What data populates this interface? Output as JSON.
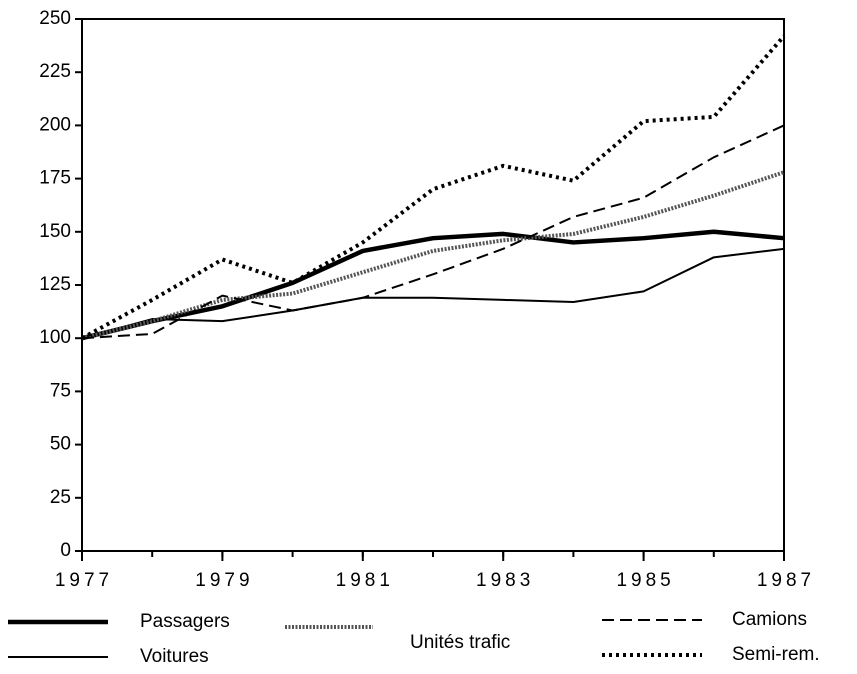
{
  "chart_data": {
    "type": "line",
    "x": [
      1977,
      1978,
      1979,
      1980,
      1981,
      1982,
      1983,
      1984,
      1985,
      1986,
      1987
    ],
    "xlim": [
      1977,
      1987
    ],
    "xticks": [
      1977,
      1979,
      1981,
      1983,
      1985,
      1987
    ],
    "ylim": [
      0,
      250
    ],
    "yticks": [
      0,
      25,
      50,
      75,
      100,
      125,
      150,
      175,
      200,
      225,
      250
    ],
    "series": [
      {
        "name": "Passagers",
        "color": "#000000",
        "style": "thick",
        "values": [
          100,
          108,
          115,
          126,
          141,
          147,
          149,
          145,
          147,
          150,
          147
        ]
      },
      {
        "name": "Voitures",
        "color": "#000000",
        "style": "thin",
        "values": [
          100,
          109,
          108,
          113,
          119,
          119,
          118,
          117,
          122,
          138,
          142
        ]
      },
      {
        "name": "Unités trafic",
        "color": "#555555",
        "style": "hatched",
        "values": [
          100,
          108,
          118,
          121,
          131,
          141,
          146,
          149,
          157,
          167,
          178
        ]
      },
      {
        "name": "Camions",
        "color": "#000000",
        "style": "dashed",
        "values": [
          100,
          102,
          120,
          113,
          119,
          130,
          142,
          157,
          166,
          185,
          200
        ]
      },
      {
        "name": "Semi-rem.",
        "color": "#000000",
        "style": "dotted",
        "values": [
          100,
          118,
          137,
          126,
          145,
          170,
          181,
          174,
          202,
          204,
          242
        ]
      }
    ]
  }
}
